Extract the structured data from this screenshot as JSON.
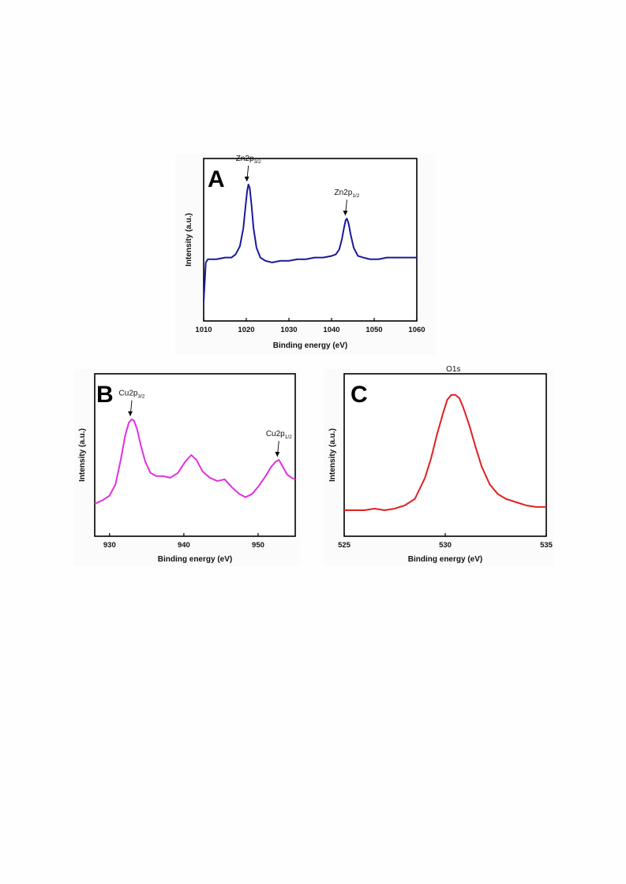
{
  "chart_data": [
    {
      "panel": "A",
      "type": "line",
      "xlabel": "Binding energy (eV)",
      "ylabel": "Intensity (a.u.)",
      "xlim": [
        1010,
        1060
      ],
      "ylim": [
        0,
        1
      ],
      "xticks": [
        1010,
        1020,
        1030,
        1040,
        1050,
        1060
      ],
      "color": "#1a1a9a",
      "series": [
        {
          "x": [
            1010.0,
            1010.5,
            1011,
            1013,
            1015,
            1016.5,
            1017.5,
            1018.5,
            1019.3,
            1019.8,
            1020.2,
            1020.5,
            1020.8,
            1021.2,
            1021.7,
            1022.4,
            1023.3,
            1024.5,
            1026,
            1028,
            1030,
            1032,
            1034,
            1036,
            1038,
            1040,
            1041,
            1041.8,
            1042.4,
            1042.9,
            1043.3,
            1043.6,
            1044,
            1044.5,
            1045.2,
            1046.2,
            1047.5,
            1049,
            1051,
            1053,
            1055,
            1057,
            1059,
            1060
          ],
          "y": [
            0.12,
            0.36,
            0.38,
            0.38,
            0.39,
            0.39,
            0.41,
            0.46,
            0.57,
            0.7,
            0.8,
            0.84,
            0.82,
            0.72,
            0.57,
            0.45,
            0.39,
            0.37,
            0.36,
            0.37,
            0.37,
            0.38,
            0.38,
            0.39,
            0.39,
            0.4,
            0.41,
            0.44,
            0.5,
            0.57,
            0.62,
            0.63,
            0.6,
            0.53,
            0.45,
            0.4,
            0.39,
            0.38,
            0.38,
            0.39,
            0.39,
            0.39,
            0.39,
            0.39
          ]
        }
      ],
      "annotations": [
        {
          "main": "Zn2p",
          "sub": "3/2",
          "x": 1020.5
        },
        {
          "main": "Zn2p",
          "sub": "1/2",
          "x": 1043.6
        }
      ]
    },
    {
      "panel": "B",
      "type": "line",
      "xlabel": "Binding energy (eV)",
      "ylabel": "Intensity (a.u.)",
      "xlim": [
        928,
        955
      ],
      "ylim": [
        0,
        1
      ],
      "xticks": [
        930,
        940,
        950
      ],
      "color": "#e030e0",
      "series": [
        {
          "x": [
            928.0,
            929.0,
            930.0,
            930.8,
            931.5,
            932.1,
            932.6,
            933.0,
            933.3,
            933.7,
            934.2,
            934.8,
            935.5,
            936.3,
            937.2,
            938.2,
            939.2,
            940.2,
            941.0,
            941.7,
            942.5,
            943.5,
            944.5,
            945.5,
            946.5,
            947.5,
            948.3,
            949.2,
            950.1,
            951.0,
            951.8,
            952.4,
            952.8,
            953.3,
            953.9,
            954.5,
            955.0
          ],
          "y": [
            0.2,
            0.22,
            0.25,
            0.32,
            0.47,
            0.62,
            0.7,
            0.72,
            0.71,
            0.66,
            0.56,
            0.46,
            0.39,
            0.37,
            0.37,
            0.36,
            0.39,
            0.46,
            0.5,
            0.47,
            0.4,
            0.36,
            0.34,
            0.35,
            0.3,
            0.26,
            0.24,
            0.26,
            0.31,
            0.37,
            0.43,
            0.46,
            0.47,
            0.43,
            0.38,
            0.36,
            0.35
          ]
        }
      ],
      "annotations": [
        {
          "main": "Cu2p",
          "sub": "3/2",
          "x": 933.0
        },
        {
          "main": "Cu2p",
          "sub": "1/2",
          "x": 952.8
        }
      ]
    },
    {
      "panel": "C",
      "type": "line",
      "xlabel": "Binding energy (eV)",
      "ylabel": "Intensity (a.u.)",
      "xlim": [
        525,
        535
      ],
      "ylim": [
        0,
        1
      ],
      "xticks": [
        525,
        530,
        535
      ],
      "color": "#e02020",
      "series": [
        {
          "x": [
            525.0,
            525.5,
            526.0,
            526.5,
            527.0,
            527.5,
            528.0,
            528.5,
            529.0,
            529.3,
            529.6,
            529.9,
            530.1,
            530.3,
            530.5,
            530.7,
            530.9,
            531.2,
            531.5,
            531.8,
            532.2,
            532.6,
            533.0,
            533.5,
            534.0,
            534.5,
            535.0
          ],
          "y": [
            0.16,
            0.16,
            0.16,
            0.17,
            0.16,
            0.17,
            0.19,
            0.23,
            0.36,
            0.48,
            0.63,
            0.76,
            0.84,
            0.87,
            0.87,
            0.85,
            0.79,
            0.68,
            0.55,
            0.43,
            0.32,
            0.26,
            0.23,
            0.21,
            0.19,
            0.18,
            0.18
          ]
        }
      ],
      "annotations": [
        {
          "main": "O1s",
          "sub": "",
          "x": 530.4
        }
      ]
    }
  ],
  "panels": {
    "a": {
      "letter": "A",
      "xlabel": "Binding energy (eV)",
      "ylabel": "Intensity (a.u.)"
    },
    "b": {
      "letter": "B",
      "xlabel": "Binding energy (eV)",
      "ylabel": "Intensity (a.u.)"
    },
    "c": {
      "letter": "C",
      "xlabel": "Binding energy (eV)",
      "ylabel": "Intensity (a.u.)"
    }
  }
}
